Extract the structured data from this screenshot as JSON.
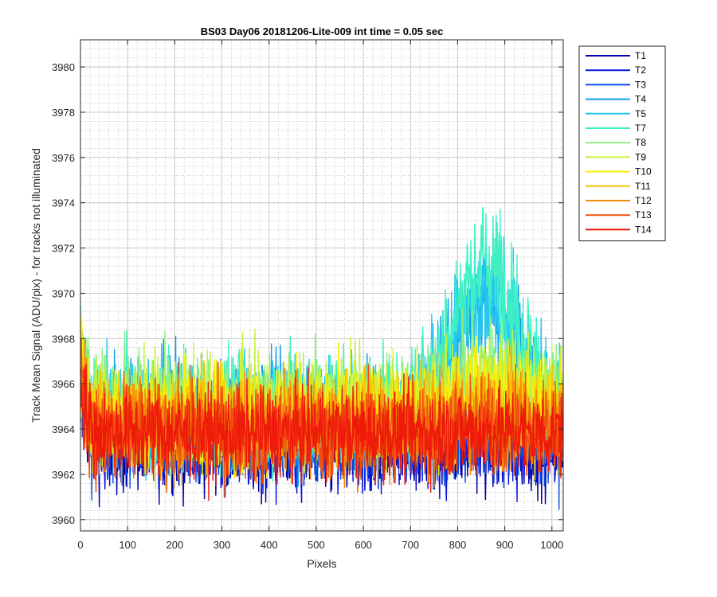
{
  "chart_data": {
    "type": "line",
    "title": "BS03 Day06 20181206-Lite-009 int time = 0.05 sec",
    "xlabel": "Pixels",
    "ylabel": "Track Mean Signal (ADU/pix) - for tracks not illuminated",
    "xlim": [
      0,
      1024
    ],
    "ylim": [
      3959.5,
      3981.2
    ],
    "xticks": [
      0,
      100,
      200,
      300,
      400,
      500,
      600,
      700,
      800,
      900,
      1000
    ],
    "yticks": [
      3960,
      3962,
      3964,
      3966,
      3968,
      3970,
      3972,
      3974,
      3976,
      3978,
      3980
    ],
    "grid": true,
    "minor_grid": true,
    "legend_position": "outside-top-right",
    "n_points": 1024,
    "series": [
      {
        "name": "T1",
        "color": "#0000aa",
        "base": 3963.4,
        "noise": 1.1,
        "hump": 0.0
      },
      {
        "name": "T2",
        "color": "#0a14d8",
        "base": 3963.5,
        "noise": 1.1,
        "hump": 0.0
      },
      {
        "name": "T3",
        "color": "#0a4fe6",
        "base": 3963.7,
        "noise": 1.1,
        "hump": 0.0
      },
      {
        "name": "T4",
        "color": "#139cea",
        "base": 3964.6,
        "noise": 1.2,
        "hump": 5.5
      },
      {
        "name": "T5",
        "color": "#26c6ee",
        "base": 3964.8,
        "noise": 1.2,
        "hump": 5.0
      },
      {
        "name": "T7",
        "color": "#3ef0c4",
        "base": 3964.9,
        "noise": 1.3,
        "hump": 6.5
      },
      {
        "name": "T8",
        "color": "#8ef07e",
        "base": 3965.0,
        "noise": 1.2,
        "hump": 1.6
      },
      {
        "name": "T9",
        "color": "#c6f23c",
        "base": 3964.9,
        "noise": 1.2,
        "hump": 1.2
      },
      {
        "name": "T10",
        "color": "#f5f00a",
        "base": 3964.6,
        "noise": 1.2,
        "hump": 0.8
      },
      {
        "name": "T11",
        "color": "#f8c20a",
        "base": 3964.4,
        "noise": 1.1,
        "hump": 0.5
      },
      {
        "name": "T12",
        "color": "#f58a0a",
        "base": 3964.1,
        "noise": 1.1,
        "hump": 0.3
      },
      {
        "name": "T13",
        "color": "#f0500e",
        "base": 3963.9,
        "noise": 1.1,
        "hump": 0.2
      },
      {
        "name": "T14",
        "color": "#ee1a0a",
        "base": 3963.8,
        "noise": 1.0,
        "hump": 0.1
      }
    ]
  }
}
